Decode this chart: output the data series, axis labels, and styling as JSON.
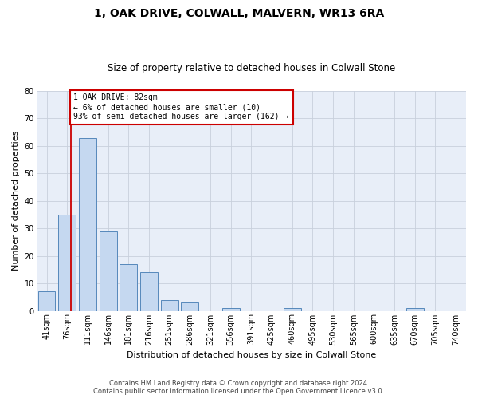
{
  "title": "1, OAK DRIVE, COLWALL, MALVERN, WR13 6RA",
  "subtitle": "Size of property relative to detached houses in Colwall Stone",
  "xlabel": "Distribution of detached houses by size in Colwall Stone",
  "ylabel": "Number of detached properties",
  "footer_line1": "Contains HM Land Registry data © Crown copyright and database right 2024.",
  "footer_line2": "Contains public sector information licensed under the Open Government Licence v3.0.",
  "bar_labels": [
    "41sqm",
    "76sqm",
    "111sqm",
    "146sqm",
    "181sqm",
    "216sqm",
    "251sqm",
    "286sqm",
    "321sqm",
    "356sqm",
    "391sqm",
    "425sqm",
    "460sqm",
    "495sqm",
    "530sqm",
    "565sqm",
    "600sqm",
    "635sqm",
    "670sqm",
    "705sqm",
    "740sqm"
  ],
  "bar_values": [
    7,
    35,
    63,
    29,
    17,
    14,
    4,
    3,
    0,
    1,
    0,
    0,
    1,
    0,
    0,
    0,
    0,
    0,
    1,
    0,
    0
  ],
  "bar_color": "#c5d8f0",
  "bar_edge_color": "#5588bb",
  "ylim": [
    0,
    80
  ],
  "yticks": [
    0,
    10,
    20,
    30,
    40,
    50,
    60,
    70,
    80
  ],
  "annotation_line_color": "#cc0000",
  "annotation_box_text": "1 OAK DRIVE: 82sqm\n← 6% of detached houses are smaller (10)\n93% of semi-detached houses are larger (162) →",
  "annotation_box_color": "#ffffff",
  "annotation_box_edge_color": "#cc0000",
  "grid_color": "#c8d0dc",
  "background_color": "#e8eef8",
  "title_fontsize": 10,
  "subtitle_fontsize": 8.5,
  "ylabel_fontsize": 8,
  "xlabel_fontsize": 8,
  "tick_fontsize": 7,
  "ann_fontsize": 7
}
